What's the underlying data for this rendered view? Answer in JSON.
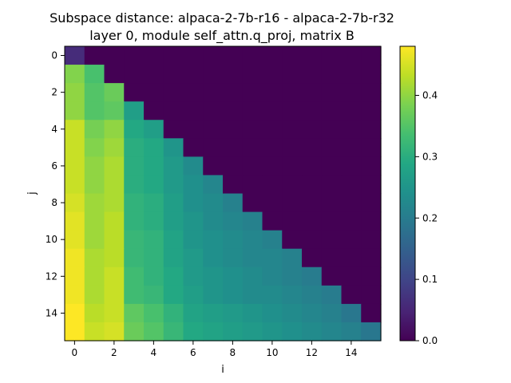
{
  "chart_data": {
    "type": "heatmap",
    "title_line1": "Subspace distance: alpaca-2-7b-r16 - alpaca-2-7b-r32",
    "title_line2": "layer 0, module self_attn.q_proj, matrix B",
    "xlabel": "i",
    "ylabel": "j",
    "x_ticks": [
      "0",
      "2",
      "4",
      "6",
      "8",
      "10",
      "12",
      "14"
    ],
    "y_ticks": [
      "0",
      "2",
      "4",
      "6",
      "8",
      "10",
      "12",
      "14"
    ],
    "colorbar_ticks": [
      "0.0",
      "0.1",
      "0.2",
      "0.3",
      "0.4"
    ],
    "colorbar_range": [
      0,
      0.48
    ],
    "colormap": "viridis",
    "n": 16,
    "matrix": [
      [
        0.06,
        0,
        0,
        0,
        0,
        0,
        0,
        0,
        0,
        0,
        0,
        0,
        0,
        0,
        0,
        0
      ],
      [
        0.39,
        0.34,
        0,
        0,
        0,
        0,
        0,
        0,
        0,
        0,
        0,
        0,
        0,
        0,
        0,
        0
      ],
      [
        0.4,
        0.35,
        0.37,
        0,
        0,
        0,
        0,
        0,
        0,
        0,
        0,
        0,
        0,
        0,
        0,
        0
      ],
      [
        0.4,
        0.35,
        0.36,
        0.27,
        0,
        0,
        0,
        0,
        0,
        0,
        0,
        0,
        0,
        0,
        0,
        0
      ],
      [
        0.44,
        0.38,
        0.4,
        0.29,
        0.27,
        0,
        0,
        0,
        0,
        0,
        0,
        0,
        0,
        0,
        0,
        0
      ],
      [
        0.44,
        0.39,
        0.41,
        0.3,
        0.29,
        0.25,
        0,
        0,
        0,
        0,
        0,
        0,
        0,
        0,
        0,
        0
      ],
      [
        0.44,
        0.4,
        0.42,
        0.3,
        0.29,
        0.26,
        0.23,
        0,
        0,
        0,
        0,
        0,
        0,
        0,
        0,
        0
      ],
      [
        0.44,
        0.4,
        0.42,
        0.3,
        0.29,
        0.26,
        0.24,
        0.22,
        0,
        0,
        0,
        0,
        0,
        0,
        0,
        0
      ],
      [
        0.45,
        0.41,
        0.42,
        0.31,
        0.3,
        0.27,
        0.24,
        0.23,
        0.21,
        0,
        0,
        0,
        0,
        0,
        0,
        0
      ],
      [
        0.46,
        0.41,
        0.43,
        0.31,
        0.3,
        0.27,
        0.25,
        0.23,
        0.22,
        0.21,
        0,
        0,
        0,
        0,
        0,
        0
      ],
      [
        0.46,
        0.41,
        0.43,
        0.32,
        0.31,
        0.28,
        0.25,
        0.24,
        0.23,
        0.22,
        0.21,
        0,
        0,
        0,
        0,
        0
      ],
      [
        0.47,
        0.42,
        0.43,
        0.32,
        0.31,
        0.28,
        0.26,
        0.24,
        0.23,
        0.22,
        0.22,
        0.21,
        0,
        0,
        0,
        0
      ],
      [
        0.47,
        0.42,
        0.44,
        0.33,
        0.31,
        0.29,
        0.26,
        0.25,
        0.24,
        0.23,
        0.22,
        0.21,
        0.2,
        0,
        0,
        0
      ],
      [
        0.47,
        0.42,
        0.44,
        0.33,
        0.32,
        0.29,
        0.27,
        0.25,
        0.24,
        0.23,
        0.23,
        0.22,
        0.21,
        0.2,
        0,
        0
      ],
      [
        0.48,
        0.43,
        0.44,
        0.36,
        0.34,
        0.31,
        0.28,
        0.27,
        0.26,
        0.25,
        0.24,
        0.23,
        0.22,
        0.21,
        0.19,
        0
      ],
      [
        0.48,
        0.44,
        0.45,
        0.37,
        0.35,
        0.32,
        0.29,
        0.28,
        0.27,
        0.26,
        0.25,
        0.24,
        0.23,
        0.22,
        0.21,
        0.19
      ]
    ]
  }
}
